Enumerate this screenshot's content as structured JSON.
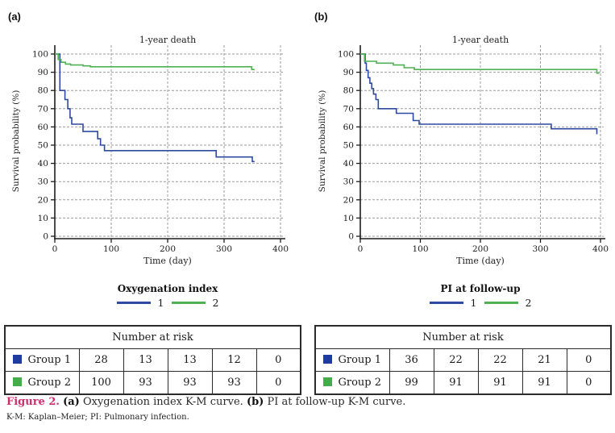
{
  "colors": {
    "blue": "#2e4aa0",
    "green": "#4fb153",
    "blue_square": "#1f3da1",
    "green_square": "#44ad4a",
    "grid": "#9e9e9e",
    "axis": "#1c1c1c",
    "caption_accent": "#d02e6e"
  },
  "caption": {
    "figure_label": "Figure 2.",
    "part_a_label": "(a)",
    "part_a_text": "Oxygenation index K-M curve.",
    "part_b_label": "(b)",
    "part_b_text": "PI at follow-up K-M curve.",
    "footnote": "K-M: Kaplan–Meier; PI: Pulmonary infection."
  },
  "chart_data": [
    {
      "type": "line",
      "panel_label": "(a)",
      "title": "1-year death",
      "xlabel": "Time (day)",
      "ylabel": "Survival probability (%)",
      "xlim": [
        0,
        400
      ],
      "ylim": [
        0,
        100
      ],
      "xticks": [
        0,
        100,
        200,
        300,
        400
      ],
      "yticks": [
        0,
        10,
        20,
        30,
        40,
        50,
        60,
        70,
        80,
        90,
        100
      ],
      "grid": true,
      "legend_position": "bottom",
      "legend_title": "Oxygenation index",
      "series": [
        {
          "name": "1",
          "color": "#2e4aa0",
          "points": [
            [
              0,
              100
            ],
            [
              9,
              100
            ],
            [
              9,
              80
            ],
            [
              18,
              80
            ],
            [
              18,
              75
            ],
            [
              23,
              75
            ],
            [
              23,
              70
            ],
            [
              27,
              70
            ],
            [
              27,
              65
            ],
            [
              30,
              65
            ],
            [
              30,
              61.5
            ],
            [
              50,
              61.5
            ],
            [
              50,
              57.5
            ],
            [
              76,
              57.5
            ],
            [
              76,
              53.5
            ],
            [
              81,
              53.5
            ],
            [
              81,
              50
            ],
            [
              88,
              50
            ],
            [
              88,
              47
            ],
            [
              286,
              47
            ],
            [
              286,
              43.5
            ],
            [
              350,
              43.5
            ],
            [
              350,
              41
            ],
            [
              354,
              41
            ]
          ]
        },
        {
          "name": "2",
          "color": "#4fb153",
          "points": [
            [
              0,
              100
            ],
            [
              6,
              100
            ],
            [
              6,
              97
            ],
            [
              11,
              97
            ],
            [
              11,
              95.5
            ],
            [
              19,
              95.5
            ],
            [
              19,
              94.5
            ],
            [
              28,
              94.5
            ],
            [
              28,
              94
            ],
            [
              50,
              94
            ],
            [
              50,
              93.5
            ],
            [
              63,
              93.5
            ],
            [
              63,
              93
            ],
            [
              349,
              93
            ],
            [
              349,
              91.5
            ],
            [
              354,
              91.5
            ]
          ]
        }
      ],
      "risk_table": {
        "header": "Number at risk",
        "rows": [
          {
            "label": "Group 1",
            "color": "#1f3da1",
            "values": [
              "28",
              "13",
              "13",
              "12",
              "0"
            ]
          },
          {
            "label": "Group 2",
            "color": "#44ad4a",
            "values": [
              "100",
              "93",
              "93",
              "93",
              "0"
            ]
          }
        ]
      }
    },
    {
      "type": "line",
      "panel_label": "(b)",
      "title": "1-year death",
      "xlabel": "Time (day)",
      "ylabel": "Survival probability (%)",
      "xlim": [
        0,
        400
      ],
      "ylim": [
        0,
        100
      ],
      "xticks": [
        0,
        100,
        200,
        300,
        400
      ],
      "yticks": [
        0,
        10,
        20,
        30,
        40,
        50,
        60,
        70,
        80,
        90,
        100
      ],
      "grid": true,
      "legend_position": "bottom",
      "legend_title": "PI at follow-up",
      "series": [
        {
          "name": "1",
          "color": "#2e4aa0",
          "points": [
            [
              0,
              100
            ],
            [
              8,
              100
            ],
            [
              8,
              95
            ],
            [
              10,
              95
            ],
            [
              10,
              91
            ],
            [
              13,
              91
            ],
            [
              13,
              87
            ],
            [
              16,
              87
            ],
            [
              16,
              84
            ],
            [
              19,
              84
            ],
            [
              19,
              81
            ],
            [
              22,
              81
            ],
            [
              22,
              78
            ],
            [
              26,
              78
            ],
            [
              26,
              75
            ],
            [
              30,
              75
            ],
            [
              30,
              70
            ],
            [
              60,
              70
            ],
            [
              60,
              67.5
            ],
            [
              88,
              67.5
            ],
            [
              88,
              63.5
            ],
            [
              98,
              63.5
            ],
            [
              98,
              61.5
            ],
            [
              318,
              61.5
            ],
            [
              318,
              59
            ],
            [
              394,
              59
            ],
            [
              394,
              56
            ]
          ]
        },
        {
          "name": "2",
          "color": "#4fb153",
          "points": [
            [
              0,
              100
            ],
            [
              7,
              100
            ],
            [
              7,
              96
            ],
            [
              27,
              96
            ],
            [
              27,
              95
            ],
            [
              55,
              95
            ],
            [
              55,
              94
            ],
            [
              73,
              94
            ],
            [
              73,
              92.5
            ],
            [
              90,
              92.5
            ],
            [
              90,
              91.5
            ],
            [
              394,
              91.5
            ],
            [
              394,
              89.5
            ],
            [
              398,
              89.5
            ]
          ]
        }
      ],
      "risk_table": {
        "header": "Number at risk",
        "rows": [
          {
            "label": "Group 1",
            "color": "#1f3da1",
            "values": [
              "36",
              "22",
              "22",
              "21",
              "0"
            ]
          },
          {
            "label": "Group 2",
            "color": "#44ad4a",
            "values": [
              "99",
              "91",
              "91",
              "91",
              "0"
            ]
          }
        ]
      }
    }
  ]
}
